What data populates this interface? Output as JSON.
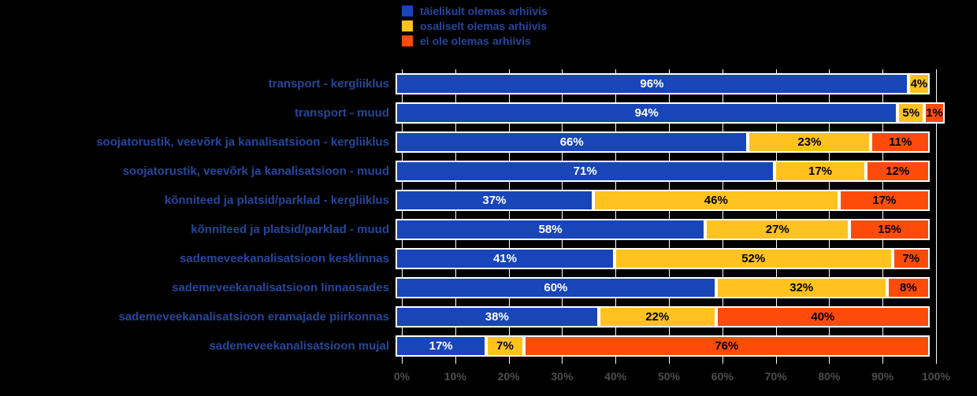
{
  "chart_data": {
    "type": "bar",
    "orientation": "horizontal",
    "stacked": true,
    "background": "#000000",
    "grid": true,
    "legend_position": "top",
    "value_suffix": "%",
    "categories": [
      "transport - kergliiklus",
      "transport - muud",
      "soojatorustik, veevõrk ja kanalisatsioon - kergliiklus",
      "soojatorustik, veevõrk ja kanalisatsioon - muud",
      "kõnniteed ja platsid/parklad - kergliiklus",
      "kõnniteed ja platsid/parklad - muud",
      "sademeveekanalisatsioon kesklinnas",
      "sademeveekanalisatsioon linnaosades",
      "sademeveekanalisatsioon eramajade piirkonnas",
      "sademeveekanalisatsioon mujal"
    ],
    "series": [
      {
        "name": "täielikult olemas arhiivis",
        "color": "#1845B8",
        "label_color": "#FFFFFF",
        "values": [
          96,
          94,
          66,
          71,
          37,
          58,
          41,
          60,
          38,
          17
        ]
      },
      {
        "name": "osaliselt olemas arhiivis",
        "color": "#FFC21E",
        "label_color": "#000000",
        "values": [
          4,
          5,
          23,
          17,
          46,
          27,
          52,
          32,
          22,
          7
        ]
      },
      {
        "name": "ei ole olemas arhiivis",
        "color": "#FF4B0A",
        "label_color": "#000000",
        "values": [
          0,
          1,
          11,
          12,
          17,
          15,
          7,
          8,
          40,
          76
        ]
      }
    ],
    "x_axis": {
      "min": 0,
      "max": 100,
      "ticks": [
        "0%",
        "10%",
        "20%",
        "30%",
        "40%",
        "50%",
        "60%",
        "70%",
        "80%",
        "90%",
        "100%"
      ]
    }
  }
}
